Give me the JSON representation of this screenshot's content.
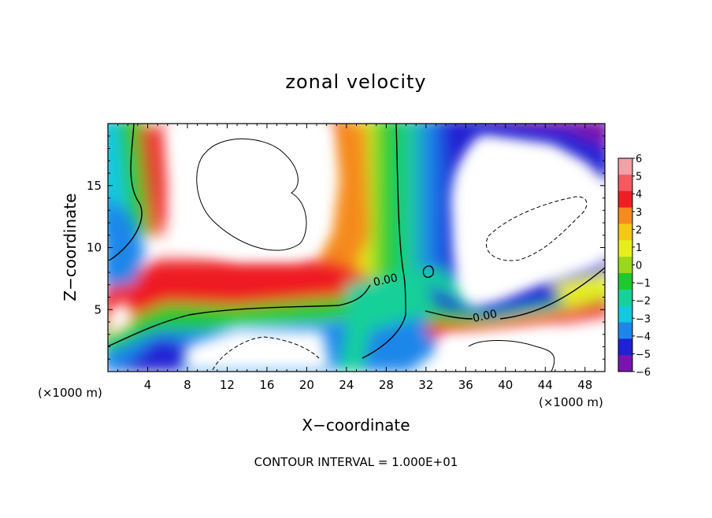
{
  "chart_data": {
    "type": "heatmap",
    "title": "zonal velocity",
    "xlabel": "X−coordinate",
    "ylabel": "Z−coordinate",
    "x_unit_label": "(×1000 m)",
    "y_unit_label": "(×1000 m)",
    "xlim": [
      0,
      50
    ],
    "ylim": [
      0,
      20
    ],
    "x_ticks": [
      4,
      8,
      12,
      16,
      20,
      24,
      28,
      32,
      36,
      40,
      44,
      48
    ],
    "y_ticks": [
      5,
      10,
      15
    ],
    "footnote": "CONTOUR INTERVAL = 1.000E+01",
    "colorbar": {
      "levels": [
        6,
        5,
        4,
        3,
        2,
        1,
        0,
        -1,
        -2,
        -3,
        -4,
        -5,
        -6
      ],
      "labels": [
        "6",
        "5",
        "4",
        "3",
        "2",
        "1",
        "0",
        "−1",
        "−2",
        "−3",
        "−4",
        "−5",
        "−6"
      ],
      "colors": [
        "#f4a0a8",
        "#f45a60",
        "#ee1e22",
        "#f58a1e",
        "#f5c818",
        "#e8ee1e",
        "#9ad81e",
        "#20c830",
        "#18d09a",
        "#14c8e0",
        "#1e86ea",
        "#2020d4",
        "#7a14b0"
      ]
    },
    "contour_labels": [
      {
        "text": "0.00",
        "x": 28,
        "y": 7.1
      },
      {
        "text": "0.00",
        "x": 38,
        "y": 4.2
      }
    ]
  }
}
